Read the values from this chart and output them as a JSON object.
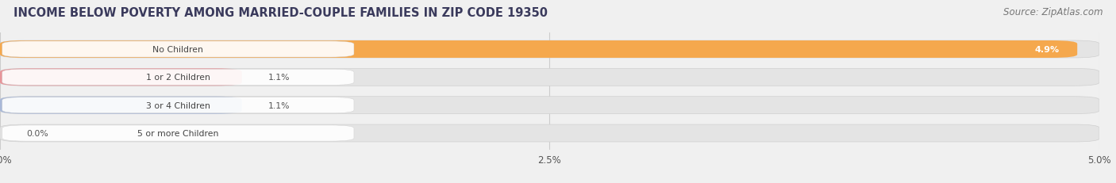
{
  "title": "INCOME BELOW POVERTY AMONG MARRIED-COUPLE FAMILIES IN ZIP CODE 19350",
  "source": "Source: ZipAtlas.com",
  "categories": [
    "No Children",
    "1 or 2 Children",
    "3 or 4 Children",
    "5 or more Children"
  ],
  "values": [
    4.9,
    1.1,
    1.1,
    0.0
  ],
  "bar_colors": [
    "#F5A84D",
    "#E8959A",
    "#A8B8D8",
    "#C4A8D4"
  ],
  "background_color": "#f0f0f0",
  "bar_bg_color": "#e4e4e4",
  "xlim": [
    0,
    5.0
  ],
  "xticks": [
    0.0,
    2.5,
    5.0
  ],
  "xtick_labels": [
    "0.0%",
    "2.5%",
    "5.0%"
  ],
  "title_fontsize": 10.5,
  "source_fontsize": 8.5,
  "bar_height": 0.62,
  "value_labels": [
    "4.9%",
    "1.1%",
    "1.1%",
    "0.0%"
  ],
  "value_inside": [
    true,
    false,
    false,
    false
  ],
  "grid_color": "#cccccc",
  "label_bg_color": "#ffffff",
  "label_text_color": "#444444",
  "value_text_color_inside": "#ffffff",
  "value_text_color_outside": "#555555"
}
